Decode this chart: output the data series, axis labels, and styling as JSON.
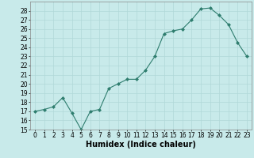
{
  "title": "",
  "xlabel": "Humidex (Indice chaleur)",
  "ylabel": "",
  "x": [
    0,
    1,
    2,
    3,
    4,
    5,
    6,
    7,
    8,
    9,
    10,
    11,
    12,
    13,
    14,
    15,
    16,
    17,
    18,
    19,
    20,
    21,
    22,
    23
  ],
  "y": [
    17.0,
    17.2,
    17.5,
    18.5,
    16.8,
    15.0,
    17.0,
    17.2,
    19.5,
    20.0,
    20.5,
    20.5,
    21.5,
    23.0,
    25.5,
    25.8,
    26.0,
    27.0,
    28.2,
    28.3,
    27.5,
    26.5,
    24.5,
    23.0
  ],
  "ylim": [
    15,
    29
  ],
  "xlim": [
    -0.5,
    23.5
  ],
  "yticks": [
    15,
    16,
    17,
    18,
    19,
    20,
    21,
    22,
    23,
    24,
    25,
    26,
    27,
    28
  ],
  "xticks": [
    0,
    1,
    2,
    3,
    4,
    5,
    6,
    7,
    8,
    9,
    10,
    11,
    12,
    13,
    14,
    15,
    16,
    17,
    18,
    19,
    20,
    21,
    22,
    23
  ],
  "line_color": "#2e7d6e",
  "marker_color": "#2e7d6e",
  "bg_color": "#c8eaea",
  "grid_color": "#b0d8d8",
  "tick_fontsize": 5.5,
  "label_fontsize": 7.0
}
